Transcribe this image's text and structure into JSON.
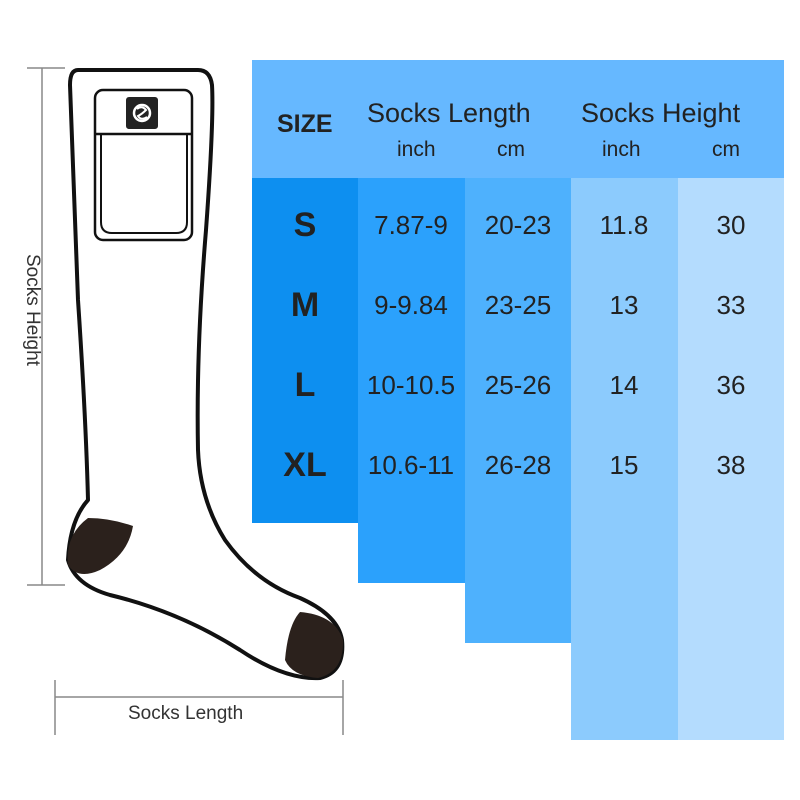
{
  "diagram": {
    "height_label": "Socks Height",
    "length_label": "Socks Length",
    "logo_icon": "s-power-logo"
  },
  "table": {
    "header": {
      "size": "SIZE",
      "length": "Socks Length",
      "height": "Socks Height",
      "units": [
        "inch",
        "cm",
        "inch",
        "cm"
      ]
    },
    "rows": [
      {
        "size": "S",
        "length_inch": "7.87-9",
        "length_cm": "20-23",
        "height_inch": "11.8",
        "height_cm": "30"
      },
      {
        "size": "M",
        "length_inch": "9-9.84",
        "length_cm": "23-25",
        "height_inch": "13",
        "height_cm": "33"
      },
      {
        "size": "L",
        "length_inch": "10-10.5",
        "length_cm": "25-26",
        "height_inch": "14",
        "height_cm": "36"
      },
      {
        "size": "XL",
        "length_inch": "10.6-11",
        "length_cm": "26-28",
        "height_inch": "15",
        "height_cm": "38"
      }
    ],
    "colors": {
      "header": "#66b8ff",
      "size": "#0d8ff0",
      "length_inch": "#2ba1fc",
      "length_cm": "#4eb1fd",
      "height_inch": "#8ccbfd",
      "height_cm": "#b4dcfe"
    }
  }
}
